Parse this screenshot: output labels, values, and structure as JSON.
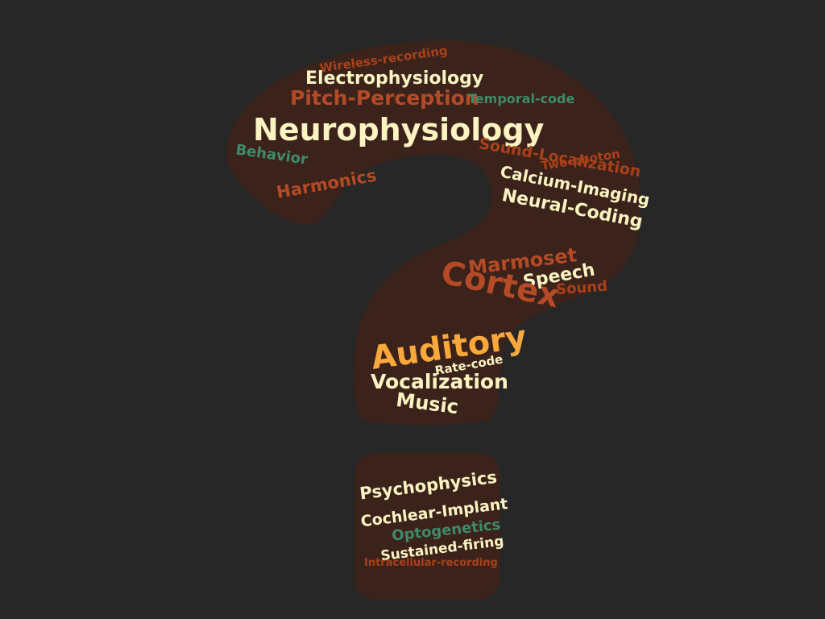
{
  "colors": {
    "background": "#272727",
    "shape_fill": "#3b231b",
    "cream": "#fbf3c2",
    "rust": "#b44a26",
    "dark_orange": "#a8411a",
    "gold": "#f9a83b",
    "teal": "#3f8a6a"
  },
  "words": [
    {
      "id": "wireless-recording",
      "text": "Wireless-recording",
      "color": "dark_orange"
    },
    {
      "id": "electrophysiology",
      "text": "Electrophysiology",
      "color": "cream"
    },
    {
      "id": "pitch-perception",
      "text": "Pitch-Perception",
      "color": "rust"
    },
    {
      "id": "temporal-code",
      "text": "Temporal-code",
      "color": "teal"
    },
    {
      "id": "neurophysiology",
      "text": "Neurophysiology",
      "color": "cream"
    },
    {
      "id": "behavior",
      "text": "Behavior",
      "color": "teal"
    },
    {
      "id": "harmonics",
      "text": "Harmonics",
      "color": "rust"
    },
    {
      "id": "two-photon",
      "text": "Two-photon",
      "color": "dark_orange"
    },
    {
      "id": "sound-localization",
      "text": "Sound-Localization",
      "color": "dark_orange"
    },
    {
      "id": "calcium-imaging",
      "text": "Calcium-Imaging",
      "color": "cream"
    },
    {
      "id": "neural-coding",
      "text": "Neural-Coding",
      "color": "cream"
    },
    {
      "id": "marmoset",
      "text": "Marmoset",
      "color": "rust"
    },
    {
      "id": "speech",
      "text": "Speech",
      "color": "cream"
    },
    {
      "id": "cortex",
      "text": "Cortex",
      "color": "rust"
    },
    {
      "id": "sound",
      "text": "Sound",
      "color": "dark_orange"
    },
    {
      "id": "auditory",
      "text": "Auditory",
      "color": "gold"
    },
    {
      "id": "rate-code",
      "text": "Rate-code",
      "color": "cream"
    },
    {
      "id": "vocalization",
      "text": "Vocalization",
      "color": "cream"
    },
    {
      "id": "music",
      "text": "Music",
      "color": "cream"
    },
    {
      "id": "psychophysics",
      "text": "Psychophysics",
      "color": "cream"
    },
    {
      "id": "cochlear-implant",
      "text": "Cochlear-Implant",
      "color": "cream"
    },
    {
      "id": "optogenetics",
      "text": "Optogenetics",
      "color": "teal"
    },
    {
      "id": "sustained-firing",
      "text": "Sustained-firing",
      "color": "cream"
    },
    {
      "id": "intracellular-recording",
      "text": "Intracellular-recording",
      "color": "dark_orange"
    }
  ]
}
